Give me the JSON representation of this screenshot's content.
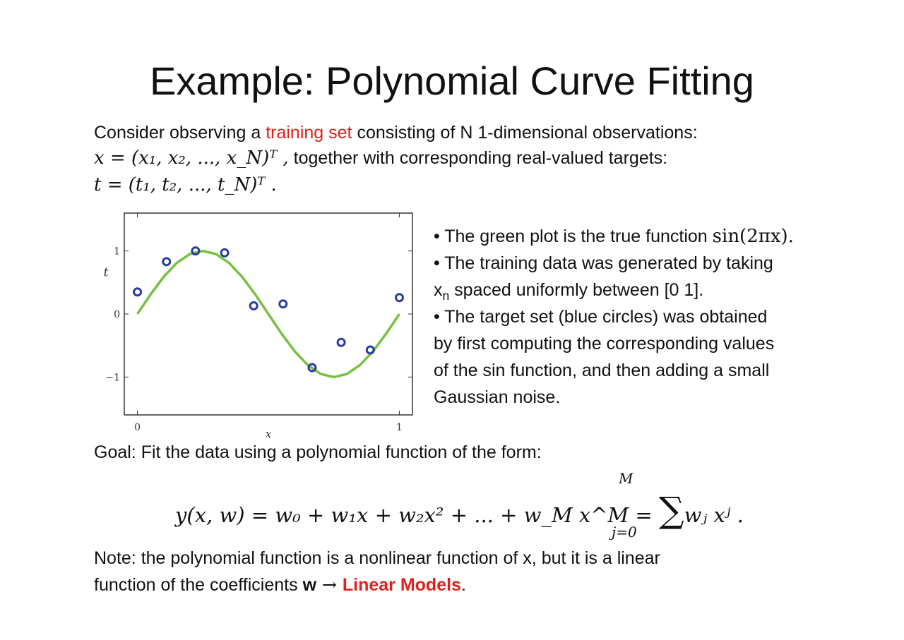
{
  "title": "Example: Polynomial Curve Fitting",
  "intro": {
    "line1_pre": "Consider observing a ",
    "line1_highlight": "training set",
    "line1_post": " consisting of N 1-dimensional observations:",
    "x_vector": "x = (x₁, x₂, ..., x_N)ᵀ ,",
    "line2_text": "together with corresponding real-valued targets:",
    "t_vector": "t = (t₁, t₂, ..., t_N)ᵀ ."
  },
  "bullets": {
    "b1_text": "• The green plot is the true function ",
    "b1_math": "sin(2πx).",
    "b2_line1": "• The training data was generated by taking",
    "b2_line2_pre": "x",
    "b2_line2_sub": "n",
    "b2_line2_post": " spaced uniformly between [0 1].",
    "b3_line1": "• The target set (blue circles) was obtained",
    "b3_line2": "by first computing the corresponding values",
    "b3_line3": "of the sin function, and then adding  a small",
    "b3_line4": "Gaussian noise."
  },
  "goal_text": "Goal: Fit the data using a polynomial function of the form:",
  "formula": {
    "main": "y(x, w) = w₀ + w₁x + w₂x² + ... + w_M x^M = ",
    "sum_upper": "M",
    "sum_lower": "j=0",
    "sum_body": "wⱼ xʲ ."
  },
  "note": {
    "line1": "Note: the polynomial function is a nonlinear function of x, but it is a linear",
    "line2_pre": "function of the coefficients ",
    "line2_bold": "w",
    "line2_arrow": " → ",
    "line2_highlight": "Linear Models",
    "line2_post": "."
  },
  "colors": {
    "highlight": "#e0201b",
    "curve": "#77c043",
    "points": "#2b3c9a"
  },
  "chart_data": {
    "type": "scatter",
    "xlabel": "x",
    "ylabel": "t",
    "xlim": [
      -0.05,
      1.05
    ],
    "ylim": [
      -1.6,
      1.6
    ],
    "xticks": [
      "0",
      "1"
    ],
    "yticks": [
      "1",
      "0",
      "−1"
    ],
    "series": [
      {
        "kind": "line",
        "x": [
          0,
          0.05,
          0.1,
          0.15,
          0.2,
          0.25,
          0.3,
          0.35,
          0.4,
          0.45,
          0.5,
          0.55,
          0.6,
          0.65,
          0.7,
          0.75,
          0.8,
          0.85,
          0.9,
          0.95,
          1.0
        ],
        "y": [
          0,
          0.309,
          0.588,
          0.809,
          0.951,
          1.0,
          0.951,
          0.809,
          0.588,
          0.309,
          0,
          -0.309,
          -0.588,
          -0.809,
          -0.951,
          -1.0,
          -0.951,
          -0.809,
          -0.588,
          -0.309,
          0
        ]
      },
      {
        "kind": "points",
        "x": [
          0,
          0.111,
          0.222,
          0.333,
          0.444,
          0.556,
          0.667,
          0.778,
          0.889,
          1.0
        ],
        "y": [
          0.35,
          0.83,
          1.0,
          0.97,
          0.13,
          0.16,
          -0.85,
          -0.45,
          -0.57,
          0.26
        ]
      }
    ]
  }
}
